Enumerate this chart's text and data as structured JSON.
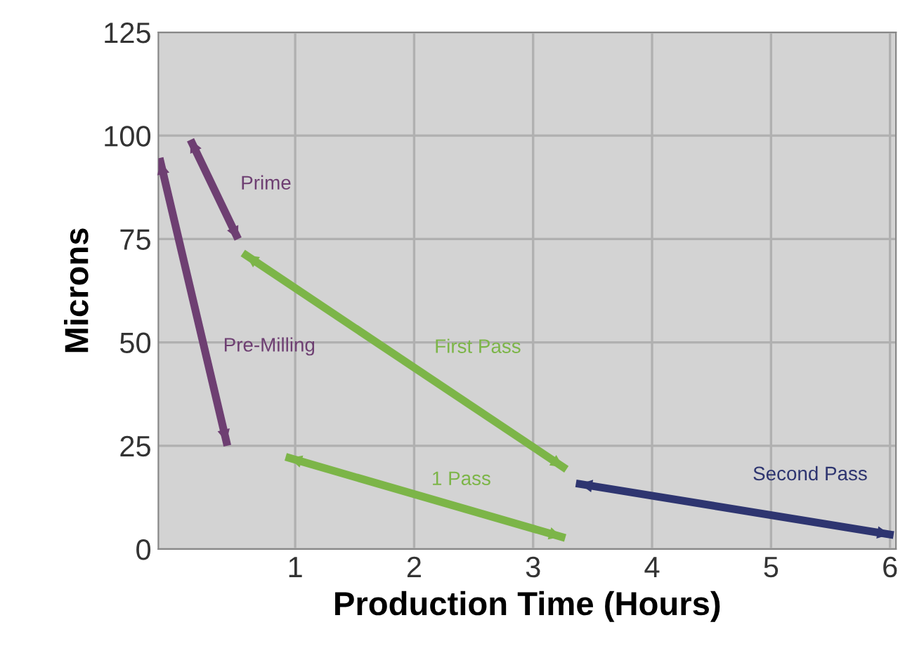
{
  "chart_data": {
    "type": "line",
    "xlabel": "Production Time (Hours)",
    "ylabel": "Microns",
    "xlim": [
      -0.15,
      6.05
    ],
    "xticks": [
      1,
      2,
      3,
      4,
      5,
      6
    ],
    "ylim": [
      0,
      125
    ],
    "yticks": [
      0,
      25,
      50,
      75,
      100,
      125
    ],
    "grid": true,
    "marker": "none",
    "line_style": "solid",
    "series": [
      {
        "name": "Pre-Milling",
        "color": "#6e3f72",
        "x": [
          -0.14,
          0.43
        ],
        "values": [
          94.6,
          25
        ]
      },
      {
        "name": "Prime",
        "color": "#6e3f72",
        "x": [
          0.12,
          0.52
        ],
        "values": [
          99,
          75
        ]
      },
      {
        "name": "First Pass",
        "color": "#7cb548",
        "x": [
          0.56,
          3.28
        ],
        "values": [
          71.6,
          19.3
        ]
      },
      {
        "name": "1 Pass",
        "color": "#7cb548",
        "x": [
          0.92,
          3.27
        ],
        "values": [
          22.3,
          2.7
        ]
      },
      {
        "name": "Second Pass",
        "color": "#2e3570",
        "x": [
          3.36,
          6.03
        ],
        "values": [
          15.9,
          3.4
        ]
      }
    ]
  }
}
